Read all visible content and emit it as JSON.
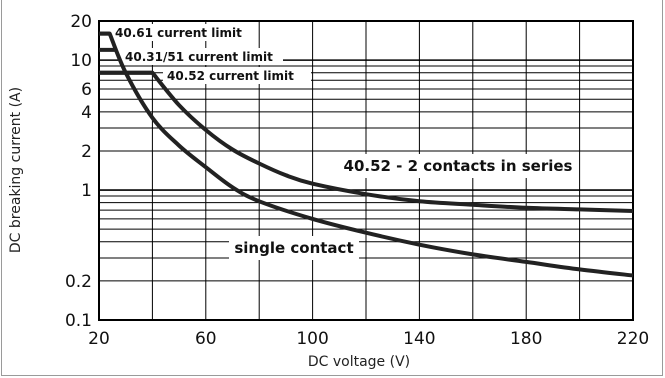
{
  "chart_data": {
    "type": "line",
    "xlabel": "DC voltage (V)",
    "ylabel": "DC breaking current (A)",
    "x_scale": "linear",
    "y_scale": "log",
    "xlim": [
      20,
      220
    ],
    "ylim": [
      0.1,
      20
    ],
    "x_ticks": [
      "20",
      "60",
      "100",
      "140",
      "180",
      "220"
    ],
    "x_tick_values": [
      20,
      60,
      100,
      140,
      180,
      220
    ],
    "y_ticks": [
      "20",
      "10",
      "6",
      "4",
      "2",
      "1",
      "0.2",
      "0.1"
    ],
    "y_tick_values": [
      20,
      10,
      6,
      4,
      2,
      1,
      0.2,
      0.1
    ],
    "grid": true,
    "series": [
      {
        "name": "single contact",
        "x": [
          20,
          24,
          30,
          40,
          50,
          60,
          70,
          80,
          100,
          120,
          140,
          160,
          180,
          200,
          220
        ],
        "y": [
          16,
          16,
          8,
          3.6,
          2.2,
          1.5,
          1.05,
          0.82,
          0.6,
          0.47,
          0.38,
          0.32,
          0.28,
          0.245,
          0.22
        ]
      },
      {
        "name": "40.52 - 2 contacts in series",
        "x": [
          20,
          40,
          50,
          60,
          70,
          80,
          90,
          100,
          120,
          140,
          160,
          180,
          200,
          220
        ],
        "y": [
          8,
          8,
          4.5,
          2.9,
          2.05,
          1.6,
          1.3,
          1.12,
          0.93,
          0.82,
          0.77,
          0.73,
          0.71,
          0.69
        ]
      }
    ],
    "limit_lines": [
      {
        "label": "40.61 current limit",
        "y": 16,
        "x_end": 24
      },
      {
        "label": "40.31/51 current limit",
        "y": 12,
        "x_end": 26
      },
      {
        "label": "40.52 current limit",
        "y": 8,
        "x_end": 40
      }
    ],
    "annotations": [
      {
        "text": "40.52 - 2 contacts in series",
        "x": 157,
        "y": 1.55
      },
      {
        "text": "single contact",
        "x": 71,
        "y": 0.4
      }
    ]
  }
}
